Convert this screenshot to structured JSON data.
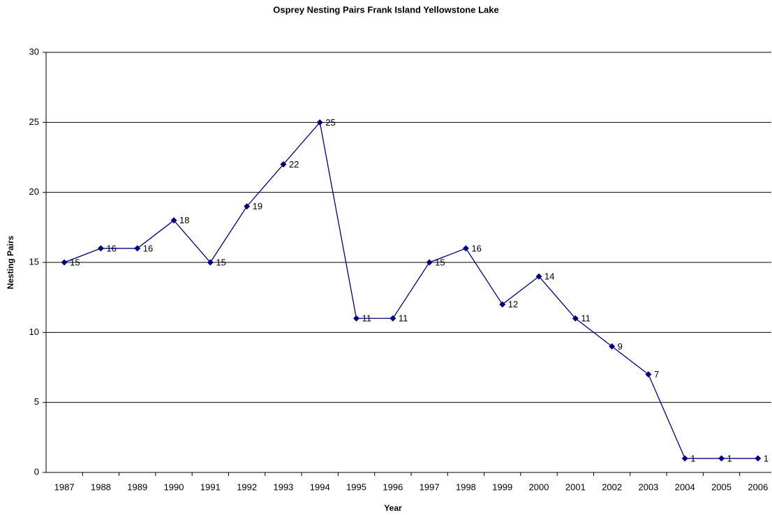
{
  "chart_data": {
    "type": "line",
    "title": "Osprey Nesting Pairs  Frank Island  Yellowstone Lake",
    "x_label": "Year",
    "y_label": "Nesting Pairs",
    "categories": [
      "1987",
      "1988",
      "1989",
      "1990",
      "1991",
      "1992",
      "1993",
      "1994",
      "1995",
      "1996",
      "1997",
      "1998",
      "1999",
      "2000",
      "2001",
      "2002",
      "2003",
      "2004",
      "2005",
      "2006"
    ],
    "values": [
      15,
      16,
      16,
      18,
      15,
      19,
      22,
      25,
      11,
      11,
      15,
      16,
      12,
      14,
      11,
      9,
      7,
      1,
      1,
      1
    ],
    "color": "#000080",
    "ylim": [
      0,
      30
    ],
    "yticks": [
      0,
      5,
      10,
      15,
      20,
      25,
      30
    ],
    "grid": true
  }
}
